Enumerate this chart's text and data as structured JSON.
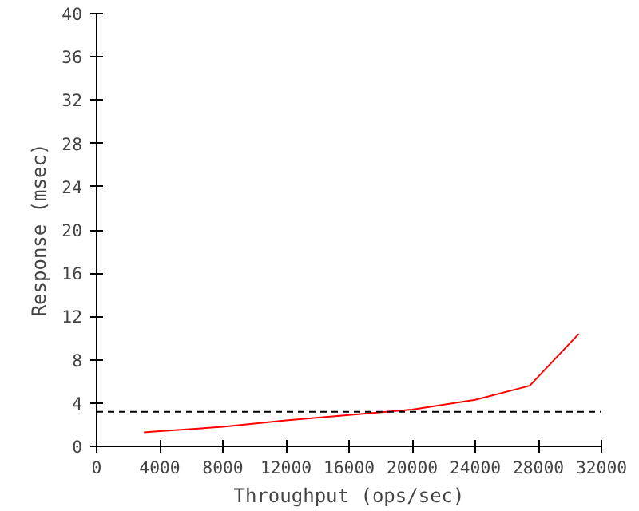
{
  "chart_data": {
    "type": "line",
    "xlabel": "Throughput (ops/sec)",
    "ylabel": "Response (msec)",
    "x": [
      3000,
      4000,
      8000,
      12000,
      16000,
      20000,
      24000,
      27450,
      30560
    ],
    "series": [
      {
        "color": "#ff0000",
        "values": [
          1.3,
          1.4,
          1.8,
          2.4,
          2.9,
          3.4,
          4.3,
          5.6,
          10.4
        ]
      }
    ],
    "xlim": [
      0,
      32000
    ],
    "xticks": [
      0,
      4000,
      8000,
      12000,
      16000,
      20000,
      24000,
      28000,
      32000
    ],
    "ylim": [
      0,
      40
    ],
    "yticks": [
      0,
      4,
      8,
      12,
      16,
      20,
      24,
      28,
      32,
      36,
      40
    ],
    "ref_lines": [
      {
        "axis": "y",
        "value": 3.2,
        "color": "#000000",
        "line_style": "dashed"
      }
    ],
    "grid": false,
    "marker": "none",
    "line_style": "solid"
  }
}
